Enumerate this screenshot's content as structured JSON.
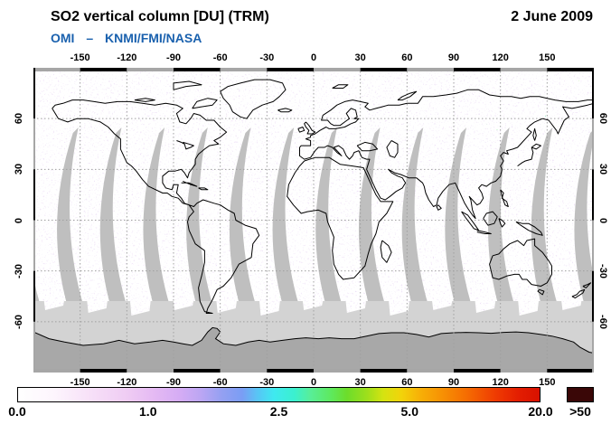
{
  "header": {
    "title": "SO2 vertical column [DU] (TRM)",
    "date": "2 June 2009",
    "subtitle": {
      "instrument": "OMI",
      "separator": "–",
      "institutions": "KNMI/FMI/NASA"
    },
    "subtitle_color": "#1a61ae"
  },
  "axes": {
    "lon_tick_labels": [
      "-150",
      "-120",
      "-90",
      "-60",
      "-30",
      "0",
      "30",
      "60",
      "90",
      "120",
      "150"
    ],
    "lon_tick_values": [
      -150,
      -120,
      -90,
      -60,
      -30,
      0,
      30,
      60,
      90,
      120,
      150
    ],
    "lat_tick_labels": [
      "60",
      "30",
      "0",
      "-30",
      "-60"
    ],
    "lat_tick_values": [
      60,
      30,
      0,
      -30,
      -60
    ],
    "lon_range": [
      -180,
      180
    ],
    "lat_range": [
      -90,
      90
    ],
    "grid_step_deg": 30
  },
  "colorbar": {
    "tick_labels": [
      "0.0",
      "1.0",
      "2.5",
      "5.0",
      "20.0"
    ],
    "tick_positions": [
      0,
      0.25,
      0.5,
      0.75,
      1
    ],
    "overflow_label": ">50",
    "overflow_color": "#3a0707",
    "stops": [
      [
        0,
        "#ffffff"
      ],
      [
        0.07,
        "#fdf5fd"
      ],
      [
        0.14,
        "#f7e0f8"
      ],
      [
        0.21,
        "#efccf3"
      ],
      [
        0.26,
        "#e5baf3"
      ],
      [
        0.31,
        "#d5acf4"
      ],
      [
        0.35,
        "#bca6f3"
      ],
      [
        0.39,
        "#95a0f2"
      ],
      [
        0.43,
        "#7a9df4"
      ],
      [
        0.46,
        "#57c6f5"
      ],
      [
        0.49,
        "#3fe9f0"
      ],
      [
        0.53,
        "#3bf0cf"
      ],
      [
        0.56,
        "#58ee99"
      ],
      [
        0.6,
        "#5ee95e"
      ],
      [
        0.63,
        "#6cdd2b"
      ],
      [
        0.67,
        "#a0df1b"
      ],
      [
        0.7,
        "#d5e311"
      ],
      [
        0.735,
        "#f2d30a"
      ],
      [
        0.77,
        "#f7b007"
      ],
      [
        0.81,
        "#f79304"
      ],
      [
        0.86,
        "#f56c02"
      ],
      [
        0.915,
        "#ef3b02"
      ],
      [
        0.96,
        "#e31d01"
      ],
      [
        1,
        "#d81100"
      ]
    ]
  },
  "map_colors": {
    "background": "#ffffff",
    "no_data_swath": "#bfbfbf",
    "polar_no_data": "#d3d3d3",
    "antarctica_fill": "#a8a8a8",
    "coastline": "#000000",
    "gridline": "#a0a0a0",
    "frame_dark": "#000000",
    "frame_light": "#a6a6a6",
    "speckle_lavender": "#d9bce9"
  },
  "chart_data": {
    "type": "heatmap",
    "title": "SO2 vertical column [DU] (TRM)",
    "date_label": "2 June 2009",
    "source_label": "OMI – KNMI/FMI/NASA",
    "unit": "DU",
    "projection": "equirectangular",
    "lon_axis_ticks": [
      -150,
      -120,
      -90,
      -60,
      -30,
      0,
      30,
      60,
      90,
      120,
      150
    ],
    "lat_axis_ticks": [
      60,
      30,
      0,
      -30,
      -60
    ],
    "lon_range": [
      -180,
      180
    ],
    "lat_range": [
      -90,
      90
    ],
    "color_scale": {
      "tick_values": [
        0.0,
        1.0,
        2.5,
        5.0,
        20.0
      ],
      "tick_positions": [
        0,
        0.25,
        0.5,
        0.75,
        1
      ],
      "overflow": ">50"
    },
    "grid": true,
    "legend_position": "bottom"
  }
}
